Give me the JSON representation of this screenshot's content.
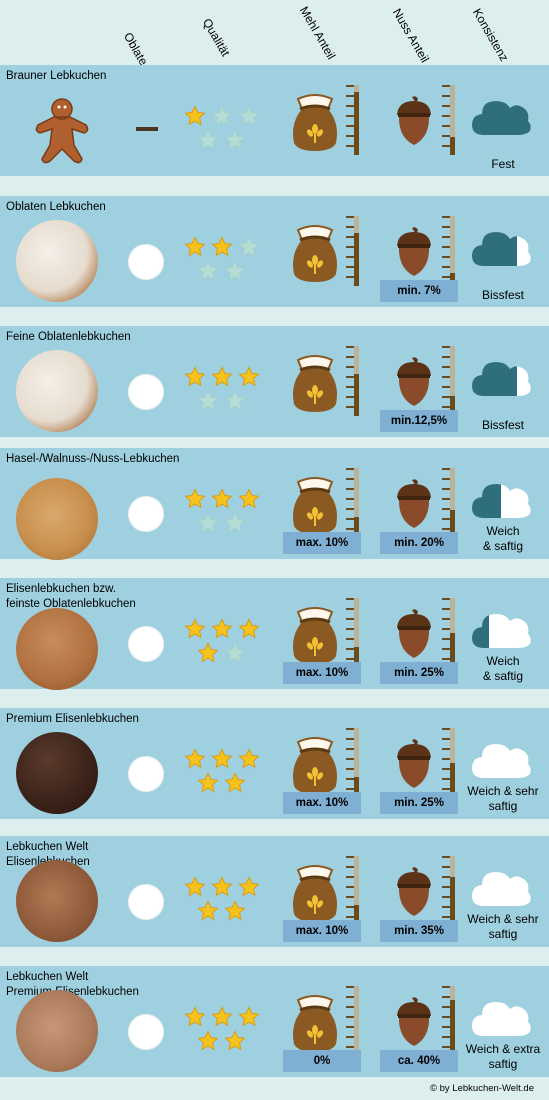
{
  "columns": [
    "Oblate",
    "Qualität",
    "Mehl Anteil",
    "Nuss Anteil",
    "Konsistenz"
  ],
  "rows": [
    {
      "name": "Brauner Lebkuchen",
      "oblate": false,
      "quality": 1,
      "flour": 0.9,
      "nut": 0.25,
      "flour_label": "",
      "nut_label": "",
      "consistency": "Fest",
      "cloud_fill": 1.0,
      "image": "gingerbread-man"
    },
    {
      "name": "Oblaten Lebkuchen",
      "oblate": true,
      "quality": 2,
      "flour": 0.75,
      "nut": 0.18,
      "flour_label": "",
      "nut_label": "min. 7%",
      "consistency": "Bissfest",
      "cloud_fill": 0.75,
      "image": "iced-round"
    },
    {
      "name": "Feine Oblatenlebkuchen",
      "oblate": true,
      "quality": 3,
      "flour": 0.6,
      "nut": 0.28,
      "flour_label": "",
      "nut_label": "min.12,5%",
      "consistency": "Bissfest",
      "cloud_fill": 0.75,
      "image": "iced-round"
    },
    {
      "name": "Hasel-/Walnuss-/Nuss-Lebkuchen",
      "oblate": true,
      "quality": 3,
      "flour": 0.3,
      "nut": 0.4,
      "flour_label": "max. 10%",
      "nut_label": "min. 20%",
      "consistency": "Weich\n& saftig",
      "cloud_fill": 0.5,
      "image": "nut-round"
    },
    {
      "name": "Elisenlebkuchen bzw.\nfeinste Oblatenlebkuchen",
      "oblate": true,
      "quality": 4,
      "flour": 0.3,
      "nut": 0.5,
      "flour_label": "max. 10%",
      "nut_label": "min. 25%",
      "consistency": "Weich\n& saftig",
      "cloud_fill": 0.3,
      "image": "elisen-round"
    },
    {
      "name": "Premium Elisenlebkuchen",
      "oblate": true,
      "quality": 5,
      "flour": 0.3,
      "nut": 0.5,
      "flour_label": "max. 10%",
      "nut_label": "min. 25%",
      "consistency": "Weich & sehr\nsaftig",
      "cloud_fill": 0.0,
      "image": "chocolate-round"
    },
    {
      "name": "Lebkuchen Welt\nElisenlebkuchen",
      "oblate": true,
      "quality": 5,
      "flour": 0.3,
      "nut": 0.7,
      "flour_label": "max. 10%",
      "nut_label": "min. 35%",
      "consistency": "Weich & sehr\nsaftig",
      "cloud_fill": 0.0,
      "image": "almond-round"
    },
    {
      "name": "Lebkuchen Welt\nPremium Elisenlebkuchen",
      "oblate": true,
      "quality": 5,
      "flour": 0.0,
      "nut": 0.8,
      "flour_label": "0%",
      "nut_label": "ca. 40%",
      "consistency": "Weich & extra\nsaftig",
      "cloud_fill": 0.0,
      "image": "almond-premium"
    }
  ],
  "credit": "©   by Lebkuchen-Welt.de",
  "colors": {
    "row_bg": "#9fd0df",
    "page_bg": "#dcefee",
    "label_bg": "#7fb0d3",
    "cloud_dark": "#2f6e7d",
    "sack": "#8a5a22",
    "acorn": "#8a4b2a",
    "ruler_fill": "#6b4a1e",
    "star_on": "#f6c21d",
    "star_off": "#b6dcd6"
  }
}
